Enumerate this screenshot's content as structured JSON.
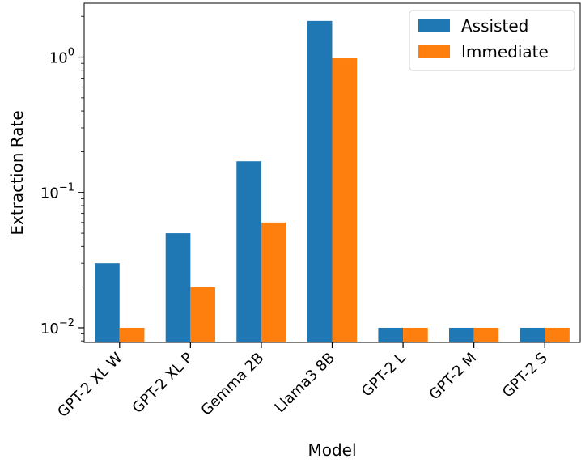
{
  "chart_data": {
    "type": "bar",
    "title": "",
    "xlabel": "Model",
    "ylabel": "Extraction Rate",
    "yscale": "log",
    "ylim": [
      0.0078,
      2.5
    ],
    "y_ticks": [
      {
        "value": 0.01,
        "base": "10",
        "exp": "−2"
      },
      {
        "value": 0.1,
        "base": "10",
        "exp": "−1"
      },
      {
        "value": 1,
        "base": "10",
        "exp": "0"
      }
    ],
    "categories": [
      "GPT-2 XL W",
      "GPT-2 XL P",
      "Gemma 2B",
      "Llama3 8B",
      "GPT-2 L",
      "GPT-2 M",
      "GPT-2 S"
    ],
    "series": [
      {
        "name": "Assisted",
        "color": "#1f77b4",
        "values": [
          0.03,
          0.05,
          0.17,
          1.85,
          0.01,
          0.01,
          0.01
        ]
      },
      {
        "name": "Immediate",
        "color": "#ff7f0e",
        "values": [
          0.01,
          0.02,
          0.06,
          0.98,
          0.01,
          0.01,
          0.01
        ]
      }
    ],
    "legend_position": "top-right",
    "grid": false
  }
}
